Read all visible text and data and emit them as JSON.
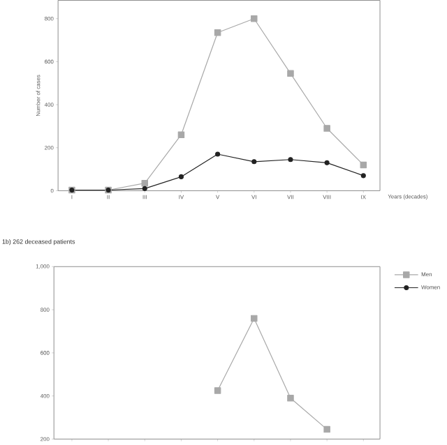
{
  "chart_data": [
    {
      "type": "line",
      "ylabel": "Number of cases",
      "xlabel": "Years (decades)",
      "categories": [
        "I",
        "II",
        "III",
        "IV",
        "V",
        "VI",
        "VII",
        "VIII",
        "IX"
      ],
      "ylim": [
        0,
        885
      ],
      "yticks": [
        0,
        200,
        400,
        600,
        800
      ],
      "series": [
        {
          "color": "#a8a8a8",
          "marker": "square",
          "values": [
            3,
            3,
            35,
            260,
            735,
            800,
            545,
            290,
            120
          ]
        },
        {
          "color": "#222222",
          "marker": "circle",
          "values": [
            3,
            3,
            10,
            65,
            170,
            135,
            145,
            130,
            70
          ]
        }
      ]
    },
    {
      "type": "line",
      "title": "1b) 262 deceased patients",
      "legend": "top right",
      "categories": [
        null,
        null,
        null,
        null,
        null,
        null,
        null,
        null,
        null
      ],
      "ylim": [
        200,
        1000
      ],
      "yticks": [
        200,
        400,
        600,
        800,
        {
          "value": 1000,
          "label": "1,000"
        }
      ],
      "series": [
        {
          "name": "Men",
          "color": "#a8a8a8",
          "marker": "square",
          "values": [
            null,
            null,
            null,
            null,
            425,
            760,
            390,
            245,
            null
          ]
        },
        {
          "name": "Women",
          "color": "#222222",
          "marker": "circle",
          "values": [
            null,
            null,
            null,
            null,
            null,
            null,
            null,
            null,
            null
          ]
        }
      ]
    }
  ]
}
